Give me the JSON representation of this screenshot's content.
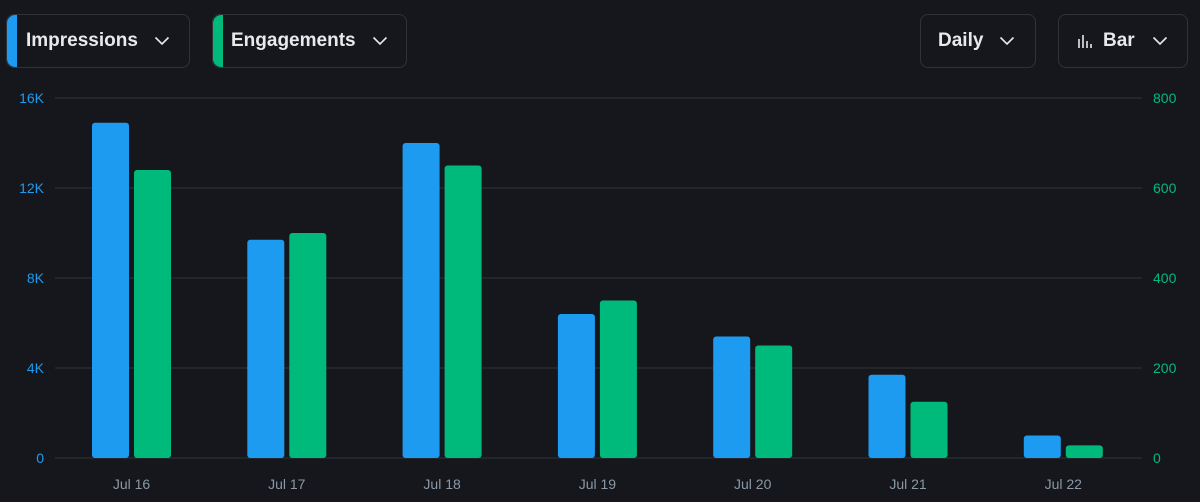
{
  "controls": {
    "impressions": {
      "label": "Impressions",
      "accent": "#1d9bf0",
      "icon": "chevron-down-icon"
    },
    "engagements": {
      "label": "Engagements",
      "accent": "#00ba7c",
      "icon": "chevron-down-icon"
    },
    "interval": {
      "label": "Daily",
      "icon": "chevron-down-icon"
    },
    "chart_type": {
      "label": "Bar",
      "icon": "bar-chart-icon"
    }
  },
  "colors": {
    "background": "#16171c",
    "impressions": "#1d9bf0",
    "engagements": "#00ba7c",
    "grid": "#2f3336",
    "axis_text": "#8b98a5"
  },
  "chart_data": {
    "type": "bar",
    "categories": [
      "Jul 16",
      "Jul 17",
      "Jul 18",
      "Jul 19",
      "Jul 20",
      "Jul 21",
      "Jul 22"
    ],
    "series": [
      {
        "name": "Impressions",
        "axis": "left",
        "values": [
          14900,
          9700,
          14000,
          6400,
          5400,
          3700,
          1000
        ]
      },
      {
        "name": "Engagements",
        "axis": "right",
        "values": [
          640,
          500,
          650,
          350,
          250,
          125,
          28
        ]
      }
    ],
    "left_axis": {
      "ylim": [
        0,
        16000
      ],
      "ticks": [
        "0",
        "4K",
        "8K",
        "12K",
        "16K"
      ]
    },
    "right_axis": {
      "ylim": [
        0,
        800
      ],
      "ticks": [
        "0",
        "200",
        "400",
        "600",
        "800"
      ]
    },
    "grid": true,
    "legend": "top-left"
  }
}
